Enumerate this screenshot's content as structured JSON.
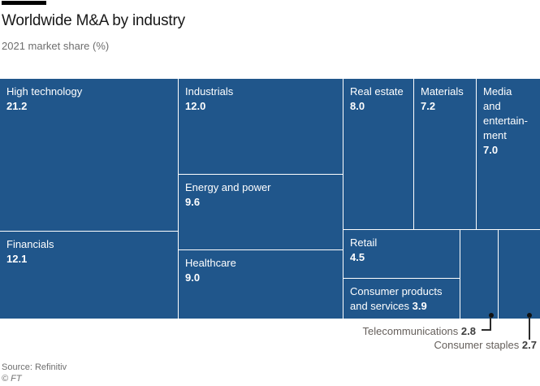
{
  "header": {
    "title": "Worldwide M&A by industry",
    "subtitle": "2021 market share (%)"
  },
  "treemap": {
    "cells": {
      "high_technology": {
        "label": "High technology",
        "value": "21.2"
      },
      "financials": {
        "label": "Financials",
        "value": "12.1"
      },
      "industrials": {
        "label": "Industrials",
        "value": "12.0"
      },
      "energy_and_power": {
        "label": "Energy and power",
        "value": "9.6"
      },
      "healthcare": {
        "label": "Healthcare",
        "value": "9.0"
      },
      "real_estate": {
        "label": "Real estate",
        "value": "8.0"
      },
      "materials": {
        "label": "Materials",
        "value": "7.2"
      },
      "media_and_entertainment": {
        "label": "Media\nand\nentertain-\nment",
        "value": "7.0"
      },
      "retail": {
        "label": "Retail",
        "value": "4.5"
      },
      "consumer_products_and_services": {
        "label": "Consumer products and services",
        "value": "3.9"
      }
    }
  },
  "annotations": {
    "telecommunications": {
      "label": "Telecommunications",
      "value": "2.8"
    },
    "consumer_staples": {
      "label": "Consumer staples",
      "value": "2.7"
    }
  },
  "footer": {
    "source": "Source: Refinitiv",
    "credit": "© FT"
  },
  "colors": {
    "cell_blue": "#20568b",
    "cell_gap": "#b3c6d4",
    "accent_bar": "#000000",
    "annotation_text": "#66605c"
  },
  "chart_data": {
    "type": "treemap",
    "title": "Worldwide M&A by industry",
    "subtitle": "2021 market share (%)",
    "unit": "%",
    "categories": [
      "High technology",
      "Financials",
      "Industrials",
      "Energy and power",
      "Healthcare",
      "Real estate",
      "Materials",
      "Media and entertainment",
      "Retail",
      "Consumer products and services",
      "Telecommunications",
      "Consumer staples"
    ],
    "values": [
      21.2,
      12.1,
      12.0,
      9.6,
      9.0,
      8.0,
      7.2,
      7.0,
      4.5,
      3.9,
      2.8,
      2.7
    ],
    "source": "Source: Refinitiv"
  }
}
